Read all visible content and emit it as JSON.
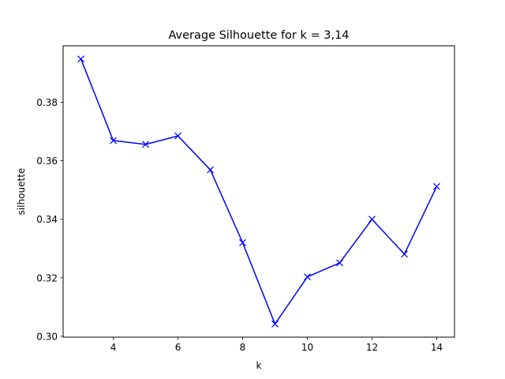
{
  "chart_data": {
    "type": "line",
    "title": "Average Silhouette for k = 3,14",
    "xlabel": "k",
    "ylabel": "silhouette",
    "xlim": [
      2.45,
      14.55
    ],
    "ylim": [
      0.2997,
      0.3993
    ],
    "xticks": [
      4,
      6,
      8,
      10,
      12,
      14
    ],
    "xtick_labels": [
      "4",
      "6",
      "8",
      "10",
      "12",
      "14"
    ],
    "yticks": [
      0.3,
      0.32,
      0.34,
      0.36,
      0.38
    ],
    "ytick_labels": [
      "0.30",
      "0.32",
      "0.34",
      "0.36",
      "0.38"
    ],
    "grid": false,
    "series": [
      {
        "color": "#0000ff",
        "marker": "x",
        "x": [
          3,
          4,
          5,
          6,
          7,
          8,
          9,
          10,
          11,
          12,
          13,
          14
        ],
        "y": [
          0.3948,
          0.3669,
          0.3656,
          0.3685,
          0.3569,
          0.332,
          0.3042,
          0.3203,
          0.3251,
          0.34,
          0.3281,
          0.3512
        ]
      }
    ]
  }
}
